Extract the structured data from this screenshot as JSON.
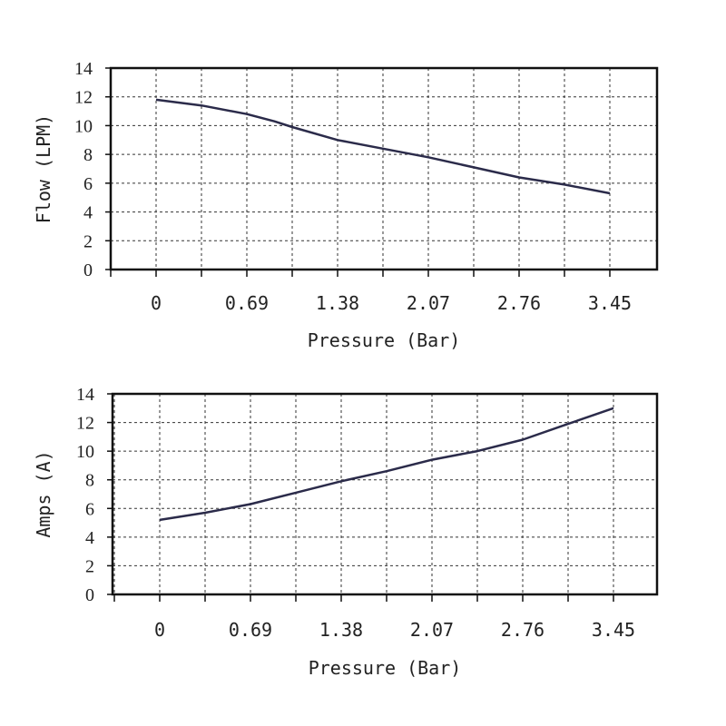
{
  "chart_data": [
    {
      "type": "line",
      "xlabel": "Pressure (Bar)",
      "ylabel": "Flow (LPM)",
      "categories": [
        "0",
        "0.69",
        "1.38",
        "2.07",
        "2.76",
        "3.45"
      ],
      "ylim": [
        0,
        14
      ],
      "yticks": [
        "0",
        "2",
        "4",
        "6",
        "8",
        "10",
        "12",
        "14"
      ],
      "grid": true,
      "series": [
        {
          "x": [
            0,
            0.345,
            0.69,
            0.9,
            1.035,
            1.38,
            1.725,
            2.07,
            2.415,
            2.76,
            3.105,
            3.45
          ],
          "values": [
            11.8,
            11.4,
            10.8,
            10.3,
            9.9,
            9.0,
            8.4,
            7.8,
            7.1,
            6.4,
            5.9,
            5.3
          ]
        }
      ]
    },
    {
      "type": "line",
      "xlabel": "Pressure (Bar)",
      "ylabel": "Amps (A)",
      "categories": [
        "0",
        "0.69",
        "1.38",
        "2.07",
        "2.76",
        "3.45"
      ],
      "ylim": [
        0,
        14
      ],
      "yticks": [
        "0",
        "2",
        "4",
        "6",
        "8",
        "10",
        "12",
        "14"
      ],
      "grid": true,
      "series": [
        {
          "x": [
            0,
            0.345,
            0.69,
            1.035,
            1.38,
            1.725,
            2.07,
            2.415,
            2.76,
            3.105,
            3.45
          ],
          "values": [
            5.2,
            5.7,
            6.3,
            7.1,
            7.9,
            8.6,
            9.4,
            10.0,
            10.8,
            11.9,
            13.0
          ]
        }
      ]
    }
  ],
  "colors": {
    "line": "#2b2b4a",
    "frame": "#111111",
    "grid": "#333333"
  }
}
